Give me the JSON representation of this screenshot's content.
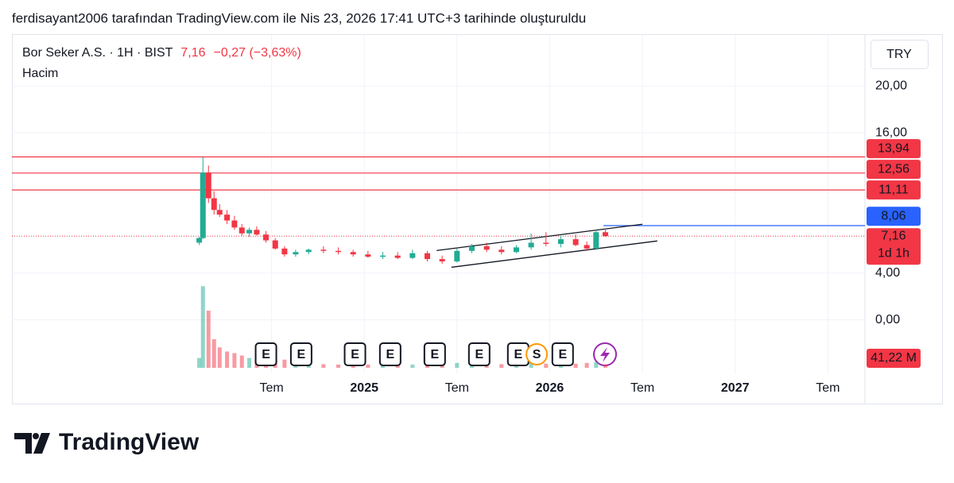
{
  "header": "ferdisayant2006 tarafından TradingView.com ile Nis 23, 2026 17:41 UTC+3 tarihinde oluşturuldu",
  "brand": "TradingView",
  "chart_data": {
    "type": "candlestick",
    "symbol": "Bor Seker A.S. · 1H · BIST",
    "change": "−0,27 (−3,63%)",
    "volume_title": "Hacim",
    "currency": "TRY",
    "up_color": "#22ab94",
    "down_color": "#f23645",
    "x": [
      2024.11,
      2024.13,
      2024.16,
      2024.19,
      2024.22,
      2024.26,
      2024.3,
      2024.34,
      2024.38,
      2024.42,
      2024.47,
      2024.52,
      2024.57,
      2024.63,
      2024.7,
      2024.78,
      2024.86,
      2024.94,
      2025.02,
      2025.1,
      2025.18,
      2025.26,
      2025.34,
      2025.42,
      2025.5,
      2025.58,
      2025.66,
      2025.74,
      2025.82,
      2025.9,
      2025.98,
      2026.06,
      2026.14,
      2026.2,
      2026.25,
      2026.3
    ],
    "open": [
      6.6,
      7.0,
      12.6,
      10.4,
      9.4,
      9.0,
      8.5,
      7.9,
      7.4,
      7.7,
      7.3,
      6.8,
      6.1,
      5.6,
      5.8,
      6.0,
      5.9,
      5.8,
      5.6,
      5.4,
      5.5,
      5.3,
      5.7,
      5.2,
      5.0,
      5.9,
      6.3,
      6.0,
      5.8,
      6.2,
      6.6,
      6.5,
      6.9,
      6.4,
      6.1,
      7.5
    ],
    "high": [
      7.1,
      13.94,
      13.2,
      11.0,
      9.9,
      9.4,
      8.9,
      8.2,
      7.9,
      8.0,
      7.6,
      7.0,
      6.3,
      6.0,
      6.1,
      6.3,
      6.2,
      6.0,
      5.9,
      5.8,
      5.8,
      6.0,
      5.9,
      5.5,
      6.1,
      6.5,
      6.6,
      6.3,
      6.4,
      7.4,
      7.5,
      7.2,
      7.3,
      6.7,
      7.7,
      7.8
    ],
    "low": [
      6.4,
      6.9,
      10.0,
      9.0,
      8.8,
      8.2,
      7.7,
      7.2,
      7.1,
      7.2,
      6.6,
      6.0,
      5.4,
      5.4,
      5.6,
      5.7,
      5.6,
      5.4,
      5.3,
      5.2,
      5.2,
      5.2,
      5.0,
      4.8,
      4.9,
      5.7,
      5.8,
      5.6,
      5.7,
      6.0,
      6.3,
      6.2,
      6.3,
      5.9,
      6.0,
      7.1
    ],
    "close": [
      7.0,
      12.6,
      10.4,
      9.4,
      9.0,
      8.5,
      7.9,
      7.4,
      7.7,
      7.3,
      6.8,
      6.1,
      5.6,
      5.8,
      6.0,
      5.9,
      5.8,
      5.6,
      5.4,
      5.5,
      5.3,
      5.7,
      5.2,
      5.0,
      5.9,
      6.3,
      6.0,
      5.8,
      6.2,
      6.6,
      6.5,
      6.9,
      6.4,
      6.1,
      7.5,
      7.16
    ],
    "volume": [
      120,
      1000,
      700,
      350,
      250,
      200,
      180,
      150,
      120,
      100,
      110,
      90,
      100,
      60,
      50,
      45,
      40,
      50,
      40,
      35,
      45,
      40,
      50,
      55,
      60,
      70,
      50,
      45,
      55,
      60,
      50,
      45,
      50,
      60,
      70,
      41.22
    ],
    "volume_ylim": [
      0,
      1100
    ],
    "volume_last": {
      "value": 41.22,
      "label": "41,22 M"
    },
    "xlim": [
      2023.1,
      2027.7
    ],
    "ylim": [
      -4.1,
      24.3
    ],
    "xticks": [
      {
        "value": 2024.5,
        "label": "Tem"
      },
      2025,
      {
        "value": 2025.5,
        "label": "Tem"
      },
      2026,
      {
        "value": 2026.5,
        "label": "Tem"
      },
      2027,
      {
        "value": 2027.5,
        "label": "Tem"
      }
    ],
    "yticks": [
      {
        "value": 20,
        "label": "20,00"
      },
      {
        "value": 16,
        "label": "16,00"
      },
      {
        "value": 4,
        "label": "4,00"
      },
      {
        "value": 0,
        "label": "0,00"
      }
    ],
    "grid": true,
    "levels": [
      {
        "value": 13.94,
        "label": "13,94",
        "color": "#f23645"
      },
      {
        "value": 12.56,
        "label": "12,56",
        "color": "#f23645"
      },
      {
        "value": 11.11,
        "label": "11,11",
        "color": "#f23645"
      },
      {
        "value": 8.06,
        "label": "8,06",
        "color": "#2962ff",
        "start": 2026.29
      }
    ],
    "current_price": {
      "value": 7.16,
      "label": "7,16",
      "countdown": "1d 1h",
      "color": "#f23645"
    },
    "trend_lines": [
      {
        "x": [
          2025.39,
          2026.5
        ],
        "y": [
          5.93,
          8.18
        ]
      },
      {
        "x": [
          2025.47,
          2026.58
        ],
        "y": [
          4.5,
          6.75
        ]
      }
    ],
    "events": [
      {
        "x": 2024.47,
        "label": "E"
      },
      {
        "x": 2024.66,
        "label": "E"
      },
      {
        "x": 2024.95,
        "label": "E"
      },
      {
        "x": 2025.14,
        "label": "E"
      },
      {
        "x": 2025.38,
        "label": "E"
      },
      {
        "x": 2025.62,
        "label": "E"
      },
      {
        "x": 2025.83,
        "label": "E"
      },
      {
        "x": 2025.93,
        "label": "S"
      },
      {
        "x": 2026.07,
        "label": "E"
      }
    ]
  }
}
